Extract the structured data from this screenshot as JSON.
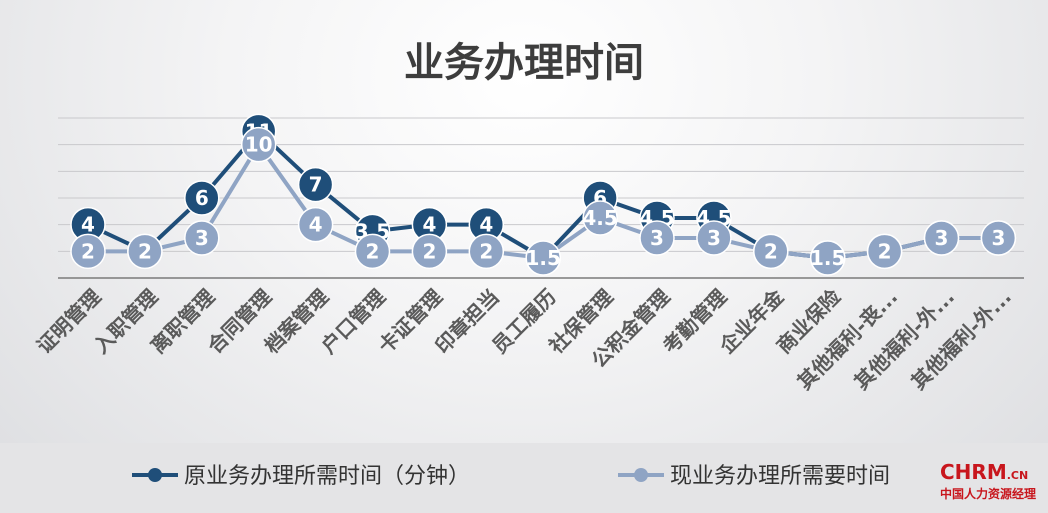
{
  "chart_data": {
    "type": "line",
    "title": "业务办理时间",
    "categories": [
      "证明管理",
      "入职管理",
      "离职管理",
      "合同管理",
      "档案管理",
      "户口管理",
      "卡证管理",
      "印章担当",
      "员工履历",
      "社保管理",
      "公积金管理",
      "考勤管理",
      "企业年金",
      "商业保险",
      "其他福利-丧...",
      "其他福利-外...",
      "其他福利-外..."
    ],
    "series": [
      {
        "name": "原业务办理所需时间（分钟）",
        "values": [
          4,
          2,
          6,
          11,
          7,
          3.5,
          4,
          4,
          1.5,
          6,
          4.5,
          4.5,
          2,
          1.5,
          2,
          3,
          3
        ],
        "color": "#1f4e79"
      },
      {
        "name": "现业务办理所需要时间",
        "values": [
          2,
          2,
          3,
          10,
          4,
          2,
          2,
          2,
          1.5,
          4.5,
          3,
          3,
          2,
          1.5,
          2,
          3,
          3
        ],
        "color": "#8fa4c4"
      }
    ],
    "ylim": [
      0,
      12
    ],
    "grid": true,
    "legend": "bottom"
  },
  "logo": {
    "brand": "CHRM",
    "suffix": ".CN",
    "tagline": "中国人力资源经理"
  }
}
